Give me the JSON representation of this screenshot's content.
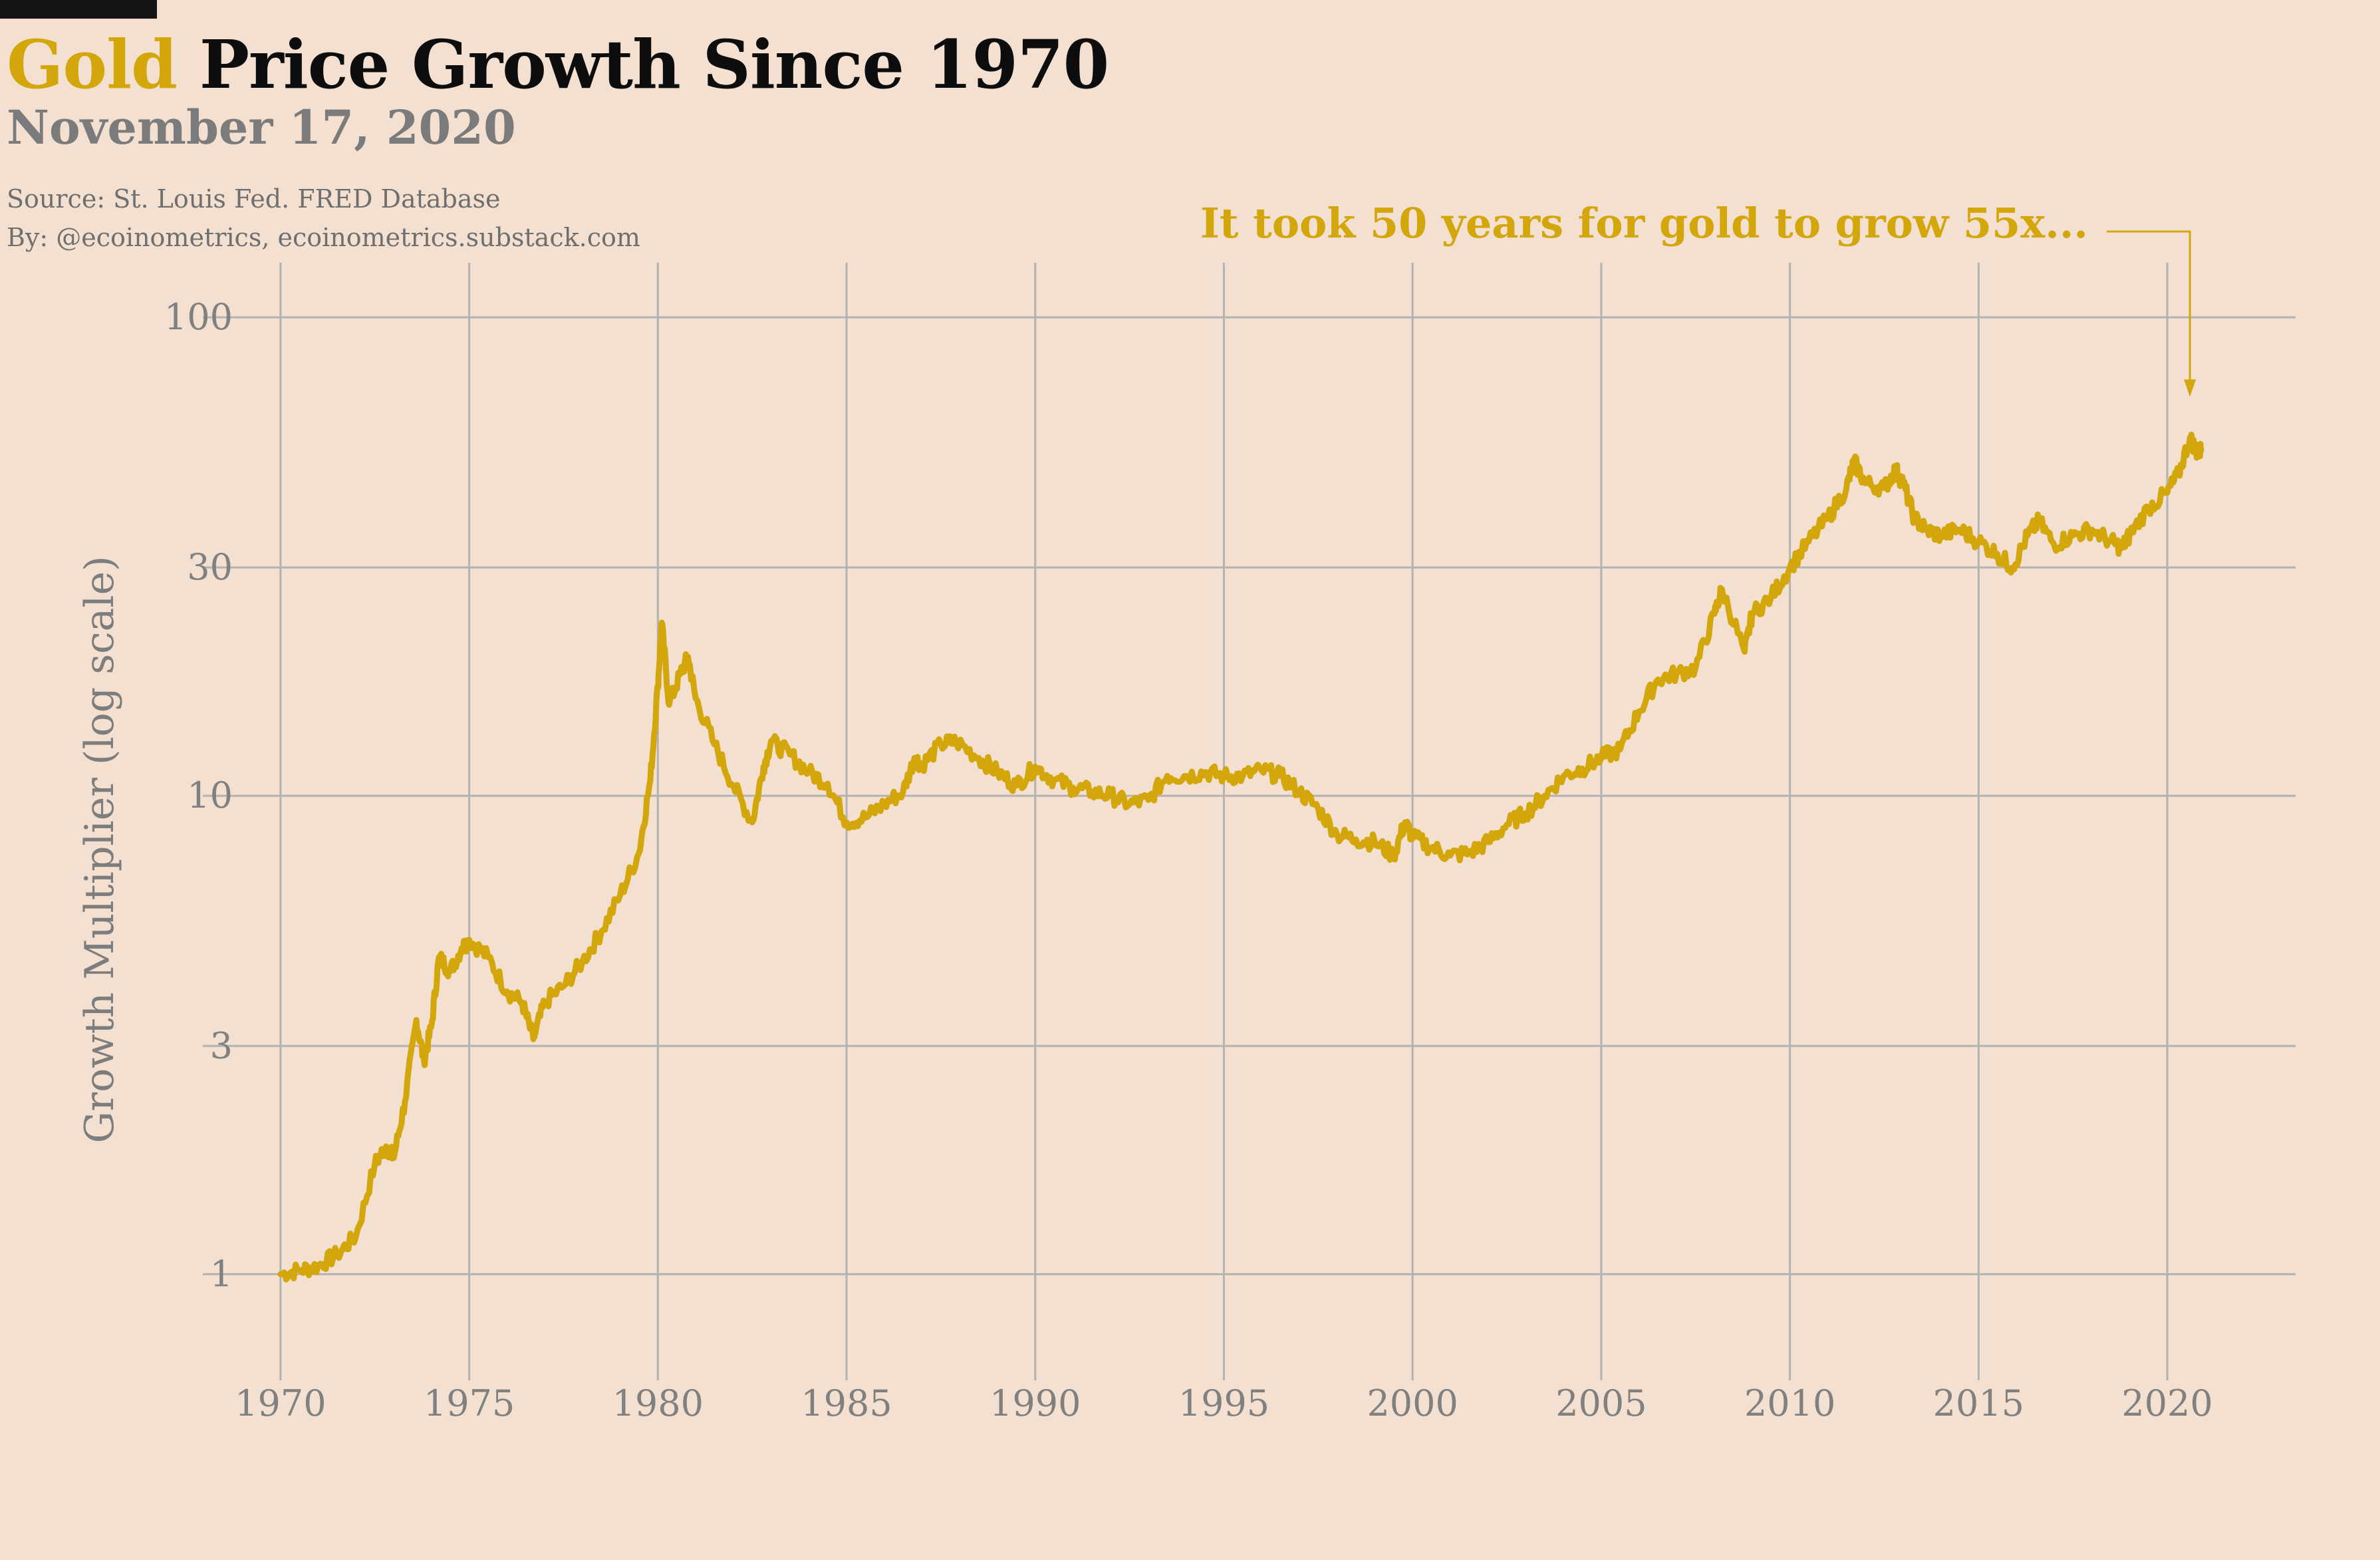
{
  "header": {
    "title_highlight": "Gold",
    "title_rest": " Price Growth Since 1970",
    "subtitle": "November 17, 2020",
    "source_line": "Source: St. Louis Fed. FRED Database",
    "by_line": "By: @ecoinometrics, ecoinometrics.substack.com"
  },
  "colors": {
    "background": "#f3e0d0",
    "gold": "#d3a70c",
    "grid": "#b3b3b3",
    "text_muted": "#808080"
  },
  "chart_data": {
    "type": "line",
    "title": "Gold Price Growth Since 1970",
    "subtitle": "November 17, 2020",
    "xlabel": "",
    "ylabel": "Growth Multiplier (log scale)",
    "y_scale": "log",
    "xlim": [
      1967.5,
      2023.4
    ],
    "ylim": [
      0.6,
      130
    ],
    "x_ticks": [
      1970,
      1975,
      1980,
      1985,
      1990,
      1995,
      2000,
      2005,
      2010,
      2015,
      2020
    ],
    "y_ticks": [
      1,
      3,
      10,
      30,
      100
    ],
    "y_tick_labels": [
      "1",
      "3",
      "10",
      "30",
      "100"
    ],
    "grid": true,
    "legend": "none",
    "annotation": {
      "text": "It took 50 years for gold to grow 55x...",
      "target": [
        2020.6,
        60
      ]
    },
    "series": [
      {
        "color": "#d3a70c",
        "points": [
          [
            1970.0,
            1.0
          ],
          [
            1970.5,
            1.02
          ],
          [
            1971.0,
            1.04
          ],
          [
            1971.5,
            1.1
          ],
          [
            1972.0,
            1.2
          ],
          [
            1972.5,
            1.7
          ],
          [
            1972.8,
            1.85
          ],
          [
            1973.0,
            1.75
          ],
          [
            1973.3,
            2.3
          ],
          [
            1973.6,
            3.4
          ],
          [
            1973.8,
            2.8
          ],
          [
            1974.0,
            3.3
          ],
          [
            1974.2,
            4.6
          ],
          [
            1974.5,
            4.3
          ],
          [
            1974.8,
            4.8
          ],
          [
            1975.0,
            5.0
          ],
          [
            1975.5,
            4.6
          ],
          [
            1976.0,
            3.9
          ],
          [
            1976.4,
            3.7
          ],
          [
            1976.7,
            3.1
          ],
          [
            1977.0,
            3.7
          ],
          [
            1977.5,
            4.0
          ],
          [
            1978.0,
            4.5
          ],
          [
            1978.5,
            5.2
          ],
          [
            1979.0,
            6.2
          ],
          [
            1979.5,
            7.6
          ],
          [
            1979.8,
            10.8
          ],
          [
            1980.0,
            17.0
          ],
          [
            1980.1,
            23.0
          ],
          [
            1980.3,
            15.5
          ],
          [
            1980.6,
            18.0
          ],
          [
            1980.8,
            19.5
          ],
          [
            1981.0,
            16.0
          ],
          [
            1981.5,
            12.8
          ],
          [
            1982.0,
            10.5
          ],
          [
            1982.5,
            8.8
          ],
          [
            1982.8,
            11.5
          ],
          [
            1983.0,
            13.0
          ],
          [
            1983.5,
            12.2
          ],
          [
            1984.0,
            11.2
          ],
          [
            1984.5,
            10.6
          ],
          [
            1985.0,
            8.8
          ],
          [
            1985.5,
            9.0
          ],
          [
            1986.0,
            9.6
          ],
          [
            1986.5,
            10.2
          ],
          [
            1986.8,
            12.0
          ],
          [
            1987.0,
            11.6
          ],
          [
            1987.5,
            12.8
          ],
          [
            1987.9,
            13.0
          ],
          [
            1988.5,
            12.0
          ],
          [
            1989.0,
            11.2
          ],
          [
            1989.5,
            10.5
          ],
          [
            1990.0,
            11.5
          ],
          [
            1990.5,
            10.8
          ],
          [
            1991.0,
            10.4
          ],
          [
            1991.5,
            10.2
          ],
          [
            1992.0,
            10.0
          ],
          [
            1992.5,
            9.6
          ],
          [
            1993.0,
            9.8
          ],
          [
            1993.5,
            11.0
          ],
          [
            1994.0,
            11.0
          ],
          [
            1994.5,
            11.2
          ],
          [
            1995.0,
            11.0
          ],
          [
            1995.5,
            11.0
          ],
          [
            1996.0,
            11.3
          ],
          [
            1996.5,
            11.0
          ],
          [
            1997.0,
            10.2
          ],
          [
            1997.5,
            9.4
          ],
          [
            1998.0,
            8.3
          ],
          [
            1998.5,
            8.1
          ],
          [
            1999.0,
            8.0
          ],
          [
            1999.5,
            7.5
          ],
          [
            1999.8,
            8.8
          ],
          [
            2000.0,
            8.2
          ],
          [
            2000.5,
            7.8
          ],
          [
            2001.0,
            7.5
          ],
          [
            2001.5,
            7.6
          ],
          [
            2002.0,
            8.0
          ],
          [
            2002.5,
            8.7
          ],
          [
            2003.0,
            9.2
          ],
          [
            2003.5,
            10.0
          ],
          [
            2004.0,
            11.0
          ],
          [
            2004.5,
            11.4
          ],
          [
            2005.0,
            12.0
          ],
          [
            2005.5,
            12.5
          ],
          [
            2006.0,
            15.0
          ],
          [
            2006.5,
            17.5
          ],
          [
            2007.0,
            18.0
          ],
          [
            2007.5,
            18.5
          ],
          [
            2008.0,
            24.0
          ],
          [
            2008.2,
            27.0
          ],
          [
            2008.8,
            20.0
          ],
          [
            2009.0,
            24.0
          ],
          [
            2009.5,
            26.0
          ],
          [
            2010.0,
            30.0
          ],
          [
            2010.5,
            34.0
          ],
          [
            2011.0,
            38.0
          ],
          [
            2011.5,
            44.0
          ],
          [
            2011.7,
            50.0
          ],
          [
            2012.0,
            45.0
          ],
          [
            2012.5,
            44.0
          ],
          [
            2012.8,
            48.0
          ],
          [
            2013.0,
            45.0
          ],
          [
            2013.3,
            38.0
          ],
          [
            2013.6,
            36.0
          ],
          [
            2014.0,
            35.0
          ],
          [
            2014.5,
            36.0
          ],
          [
            2015.0,
            34.0
          ],
          [
            2015.5,
            32.0
          ],
          [
            2015.9,
            30.0
          ],
          [
            2016.3,
            35.0
          ],
          [
            2016.6,
            37.5
          ],
          [
            2017.0,
            33.5
          ],
          [
            2017.5,
            35.0
          ],
          [
            2018.0,
            36.0
          ],
          [
            2018.5,
            34.0
          ],
          [
            2018.8,
            33.0
          ],
          [
            2019.0,
            35.0
          ],
          [
            2019.5,
            40.0
          ],
          [
            2020.0,
            43.0
          ],
          [
            2020.3,
            47.0
          ],
          [
            2020.6,
            56.0
          ],
          [
            2020.8,
            52.0
          ],
          [
            2020.9,
            53.0
          ]
        ]
      }
    ]
  }
}
